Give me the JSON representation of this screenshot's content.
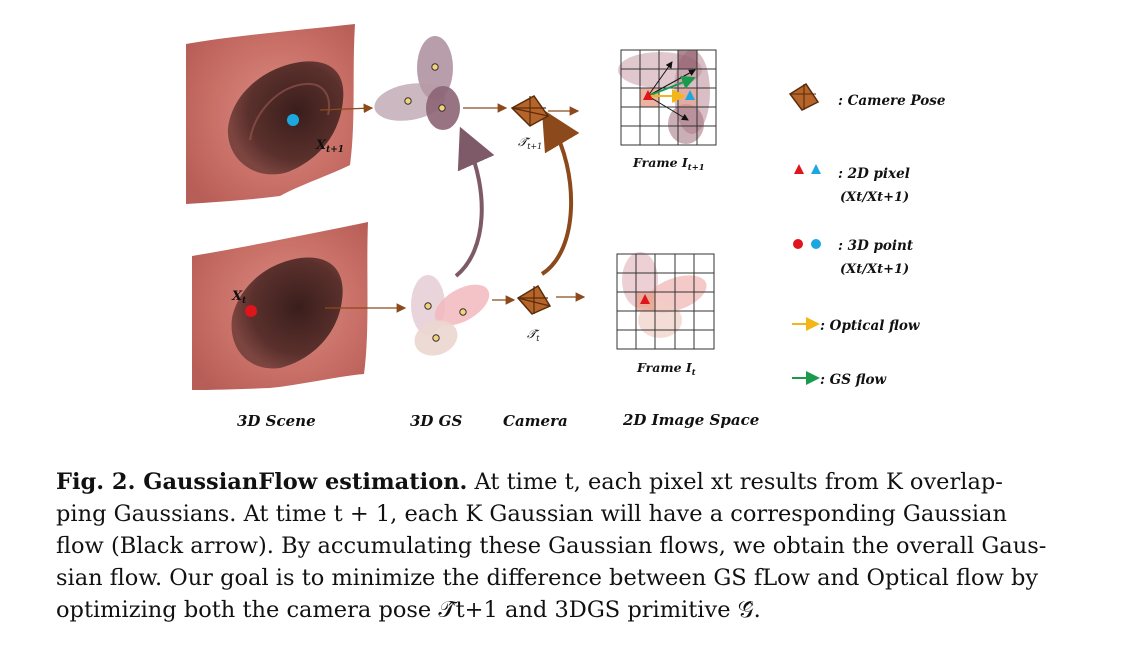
{
  "figure": {
    "columns": {
      "scene": "3D Scene",
      "gs": "3D GS",
      "camera": "Camera",
      "image_space": "2D Image Space"
    },
    "points": {
      "top": "X",
      "top_sub": "t+1",
      "bottom": "X",
      "bottom_sub": "t"
    },
    "poses": {
      "top": "𝒯̂",
      "top_sub": "t+1",
      "bottom": "𝒯̂",
      "bottom_sub": "t"
    },
    "frames": {
      "top": "Frame I",
      "top_sub": "t+1",
      "bottom": "Frame I",
      "bottom_sub": "t"
    },
    "legend": {
      "camera_pose": ": Camere Pose",
      "pixel": ": 2D pixel",
      "pixel_note": "(Xt/Xt+1)",
      "point": ": 3D point",
      "point_note": "(Xt/Xt+1)",
      "optical_flow": ": Optical flow",
      "gs_flow": ": GS flow"
    },
    "colors": {
      "red": "#e0141c",
      "blue": "#1da7e0",
      "optical_flow": "#f2b619",
      "gs_flow": "#1a9a4c",
      "pose_brown": "#8c4a1c"
    }
  },
  "caption": {
    "lead": "Fig. 2. GaussianFlow estimation.",
    "line1": " At time t, each pixel xt results from K overlap-",
    "line2": "ping Gaussians. At time t + 1, each K Gaussian will have a corresponding Gaussian",
    "line3": "flow (Black arrow). By accumulating these Gaussian flows, we obtain the overall Gaus-",
    "line4": "sian flow. Our goal is to minimize the difference between GS fLow and Optical flow by",
    "line5": "optimizing both the camera pose 𝒯̂t+1 and 3DGS primitive 𝒢̂."
  }
}
